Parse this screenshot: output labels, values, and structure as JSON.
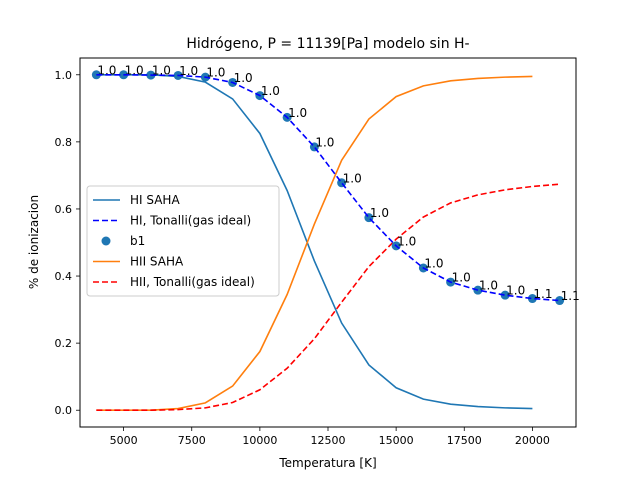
{
  "chart_data": {
    "type": "line",
    "title": "Hidrógeno, P = 11139[Pa] modelo sin H-",
    "xlabel": "Temperatura [K]",
    "ylabel": "% de ionizacion",
    "xlim": [
      3400,
      21600
    ],
    "ylim": [
      -0.05,
      1.05
    ],
    "xticks": [
      5000,
      7500,
      10000,
      12500,
      15000,
      17500,
      20000
    ],
    "xtick_labels": [
      "5000",
      "7500",
      "10000",
      "12500",
      "15000",
      "17500",
      "20000"
    ],
    "yticks": [
      0.0,
      0.2,
      0.4,
      0.6,
      0.8,
      1.0
    ],
    "ytick_labels": [
      "0.0",
      "0.2",
      "0.4",
      "0.6",
      "0.8",
      "1.0"
    ],
    "grid": false,
    "legend_position": "center-left",
    "series": [
      {
        "name": "HI SAHA",
        "style": "solid",
        "color": "#1f77b4",
        "x": [
          4000,
          5000,
          6000,
          7000,
          8000,
          9000,
          10000,
          11000,
          12000,
          13000,
          14000,
          15000,
          16000,
          17000,
          18000,
          19000,
          20000
        ],
        "y": [
          1.0,
          1.0,
          1.0,
          0.995,
          0.978,
          0.928,
          0.825,
          0.655,
          0.445,
          0.26,
          0.135,
          0.067,
          0.033,
          0.018,
          0.011,
          0.007,
          0.005
        ]
      },
      {
        "name": "HI, Tonalli(gas ideal)",
        "style": "dashed",
        "color": "#0000ff",
        "x": [
          4000,
          5000,
          6000,
          7000,
          8000,
          9000,
          10000,
          11000,
          12000,
          13000,
          14000,
          15000,
          16000,
          17000,
          18000,
          19000,
          20000,
          21000
        ],
        "y": [
          1.0,
          1.0,
          0.999,
          0.998,
          0.993,
          0.977,
          0.938,
          0.873,
          0.785,
          0.678,
          0.574,
          0.49,
          0.424,
          0.382,
          0.358,
          0.343,
          0.333,
          0.327
        ]
      },
      {
        "name": "b1",
        "style": "scatter",
        "color": "#1f77b4",
        "x": [
          4000,
          5000,
          6000,
          7000,
          8000,
          9000,
          10000,
          11000,
          12000,
          13000,
          14000,
          15000,
          16000,
          17000,
          18000,
          19000,
          20000,
          21000
        ],
        "y": [
          1.0,
          1.0,
          0.999,
          0.998,
          0.993,
          0.977,
          0.938,
          0.873,
          0.785,
          0.678,
          0.574,
          0.49,
          0.424,
          0.382,
          0.358,
          0.343,
          0.333,
          0.327
        ],
        "labels": [
          "1.0",
          "1.0",
          "1.0",
          "1.0",
          "1.0",
          "1.0",
          "1.0",
          "1.0",
          "1.0",
          "1.0",
          "1.0",
          "1.0",
          "1.0",
          "1.0",
          "1.0",
          "1.0",
          "1.1",
          "1.1"
        ]
      },
      {
        "name": "HII SAHA",
        "style": "solid",
        "color": "#ff7f0e",
        "x": [
          4000,
          5000,
          6000,
          7000,
          8000,
          9000,
          10000,
          11000,
          12000,
          13000,
          14000,
          15000,
          16000,
          17000,
          18000,
          19000,
          20000
        ],
        "y": [
          0.0,
          0.0,
          0.0,
          0.005,
          0.022,
          0.072,
          0.175,
          0.345,
          0.555,
          0.745,
          0.868,
          0.935,
          0.967,
          0.982,
          0.989,
          0.993,
          0.995
        ]
      },
      {
        "name": "HII, Tonalli(gas ideal)",
        "style": "dashed",
        "color": "#ff0000",
        "x": [
          4000,
          5000,
          6000,
          7000,
          8000,
          9000,
          10000,
          11000,
          12000,
          13000,
          14000,
          15000,
          16000,
          17000,
          18000,
          19000,
          20000,
          21000
        ],
        "y": [
          0.0,
          0.0,
          0.0,
          0.002,
          0.007,
          0.023,
          0.061,
          0.125,
          0.213,
          0.322,
          0.428,
          0.51,
          0.576,
          0.618,
          0.642,
          0.657,
          0.667,
          0.674
        ]
      }
    ]
  }
}
